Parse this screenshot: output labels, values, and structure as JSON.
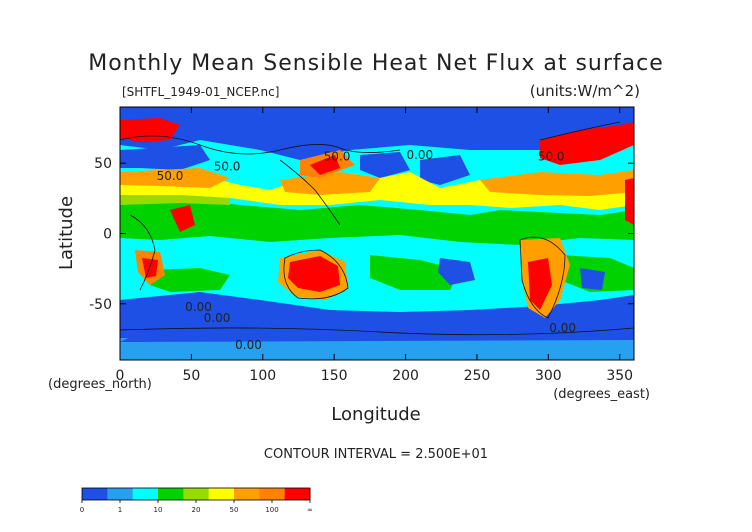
{
  "title": "Monthly Mean Sensible Heat Net Flux at surface",
  "file_label": "[SHTFL_1949-01_NCEP.nc]",
  "units_label": "(units:W/m^2)",
  "contour_interval": "CONTOUR INTERVAL = 2.500E+01",
  "axes": {
    "xlabel": "Longitude",
    "ylabel": "Latitude",
    "x_unit": "(degrees_east)",
    "y_unit": "(degrees_north)",
    "x_ticks": [
      "0",
      "50",
      "100",
      "150",
      "200",
      "250",
      "300",
      "350"
    ],
    "y_ticks": [
      "50",
      "0",
      "-50"
    ],
    "x_range": [
      0,
      360
    ],
    "y_range": [
      -90,
      90
    ]
  },
  "contour_labels": [
    {
      "text": "50.0",
      "lon": 35,
      "lat": 38
    },
    {
      "text": "50.0",
      "lon": 75,
      "lat": 45
    },
    {
      "text": "50.0",
      "lon": 152,
      "lat": 52
    },
    {
      "text": "50.0",
      "lon": 302,
      "lat": 52
    },
    {
      "text": "0.00",
      "lon": 210,
      "lat": 53
    },
    {
      "text": "0.00",
      "lon": 55,
      "lat": -55
    },
    {
      "text": "0.00",
      "lon": 68,
      "lat": -63
    },
    {
      "text": "0.00",
      "lon": 310,
      "lat": -70
    },
    {
      "text": "0.00",
      "lon": 90,
      "lat": -82
    }
  ],
  "colorbar": {
    "colors": [
      "#1e50e6",
      "#28a0f0",
      "#00ffff",
      "#00d200",
      "#96dc00",
      "#ffff00",
      "#ffa000",
      "#ff8200",
      "#ff0000"
    ],
    "labels": [
      "0",
      "1",
      "10",
      "20",
      "50",
      "100",
      "∞"
    ]
  }
}
